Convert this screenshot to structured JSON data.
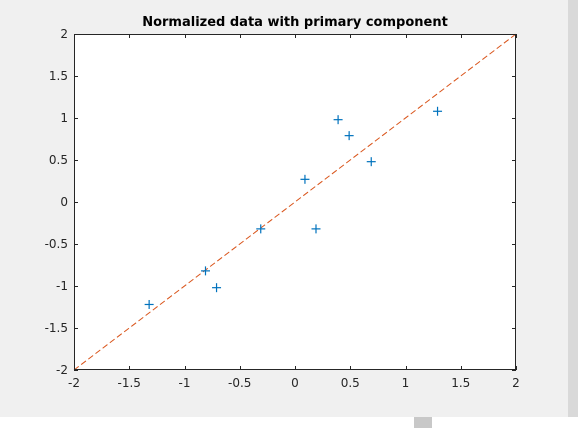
{
  "chart_data": {
    "type": "scatter",
    "title": "Normalized data with primary component",
    "xlabel": "",
    "ylabel": "",
    "xlim": [
      -2,
      2
    ],
    "ylim": [
      -2,
      2
    ],
    "xticks": [
      -2,
      -1.5,
      -1,
      -0.5,
      0,
      0.5,
      1,
      1.5,
      2
    ],
    "yticks": [
      -2,
      -1.5,
      -1,
      -0.5,
      0,
      0.5,
      1,
      1.5,
      2
    ],
    "xtick_labels": [
      "-2",
      "-1.5",
      "-1",
      "-0.5",
      "0",
      "0.5",
      "1",
      "1.5",
      "2"
    ],
    "ytick_labels": [
      "-2",
      "-1.5",
      "-1",
      "-0.5",
      "0",
      "0.5",
      "1",
      "1.5",
      "2"
    ],
    "grid": false,
    "series": [
      {
        "marker": "plus",
        "color": "#0072bd",
        "points": [
          {
            "x": -1.32,
            "y": -1.22
          },
          {
            "x": -0.81,
            "y": -0.82
          },
          {
            "x": -0.71,
            "y": -1.02
          },
          {
            "x": -0.31,
            "y": -0.32
          },
          {
            "x": 0.09,
            "y": 0.27
          },
          {
            "x": 0.19,
            "y": -0.32
          },
          {
            "x": 0.39,
            "y": 0.98
          },
          {
            "x": 0.49,
            "y": 0.79
          },
          {
            "x": 0.69,
            "y": 0.48
          },
          {
            "x": 1.29,
            "y": 1.08
          }
        ]
      },
      {
        "line_style": "dashed",
        "color": "#d95319",
        "points": [
          {
            "x": -2,
            "y": -2
          },
          {
            "x": 2,
            "y": 2
          }
        ]
      }
    ]
  }
}
